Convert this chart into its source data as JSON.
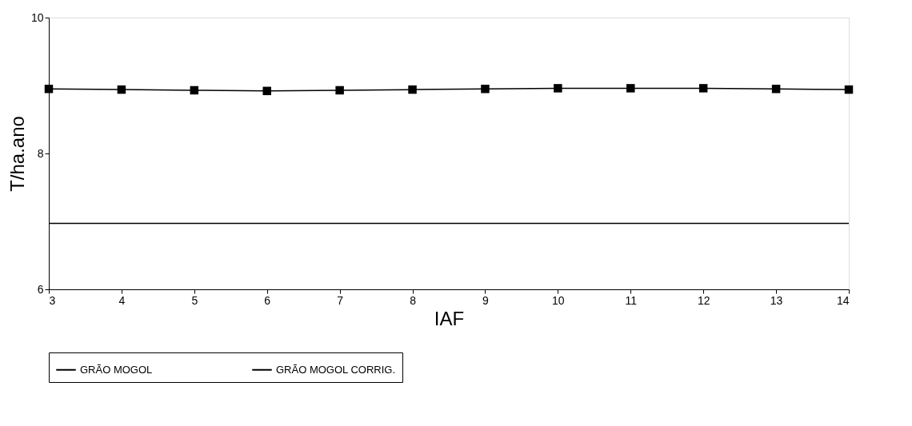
{
  "chart_data": {
    "type": "line",
    "xlabel": "IAF",
    "ylabel": "T/ha.ano",
    "x": [
      3,
      4,
      5,
      6,
      7,
      8,
      9,
      10,
      11,
      12,
      13,
      14
    ],
    "xlim": [
      3,
      14
    ],
    "xticks": [
      3,
      4,
      5,
      6,
      7,
      8,
      9,
      10,
      11,
      12,
      13,
      14
    ],
    "ylim": [
      6,
      10
    ],
    "yticks": [
      6,
      8,
      10
    ],
    "series": [
      {
        "name": "GRÃO MOGOL",
        "color": "#000000",
        "marker": "square",
        "values": [
          8.95,
          8.94,
          8.93,
          8.92,
          8.93,
          8.94,
          8.95,
          8.96,
          8.96,
          8.96,
          8.95,
          8.94
        ]
      },
      {
        "name": "GRÃO MOGOL CORRIG.",
        "color": "#000000",
        "marker": "none",
        "values": [
          6.97,
          6.97,
          6.97,
          6.97,
          6.97,
          6.97,
          6.97,
          6.97,
          6.97,
          6.97,
          6.97,
          6.97
        ]
      }
    ],
    "legend": "bottom",
    "grid": false
  }
}
